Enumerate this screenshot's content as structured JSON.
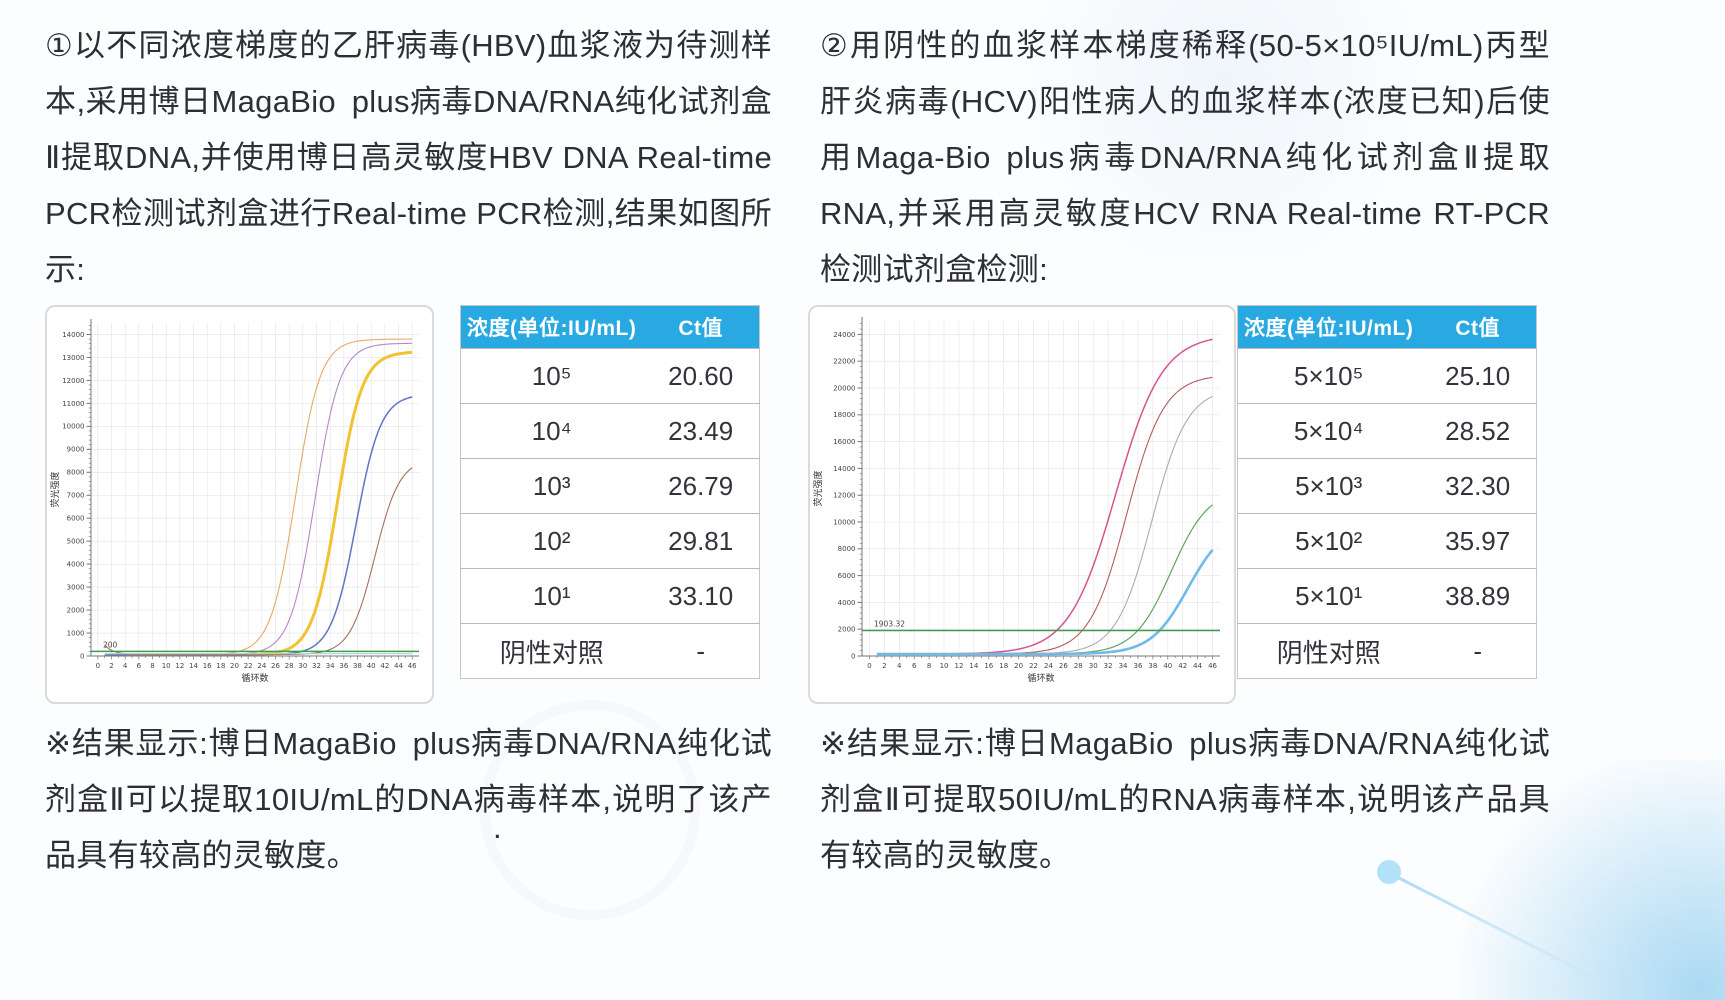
{
  "colors": {
    "table_header_bg": "#29A9E1",
    "table_header_text": "#FFFFFF",
    "threshold_green": "#3E9B4F",
    "decor_blue": "#ADE0F7"
  },
  "left_panel": {
    "description": "①以不同浓度梯度的乙肝病毒(HBV)血浆液为待测样本,采用博日MagaBio plus病毒DNA/RNA纯化试剂盒Ⅱ提取DNA,并使用博日高灵敏度HBV DNA Real-time PCR检测试剂盒进行Real-time PCR检测,结果如图所示:",
    "result": "※结果显示:博日MagaBio plus病毒DNA/RNA纯化试剂盒Ⅱ可以提取10IU/mL的DNA病毒样本,说明了该产品具有较高的灵敏度。",
    "stray_dot": ".",
    "table": {
      "headers": [
        "浓度(单位:IU/mL)",
        "Ct值"
      ],
      "rows": [
        [
          "10⁵",
          "20.60"
        ],
        [
          "10⁴",
          "23.49"
        ],
        [
          "10³",
          "26.79"
        ],
        [
          "10²",
          "29.81"
        ],
        [
          "10¹",
          "33.10"
        ],
        [
          "阴性对照",
          "-"
        ]
      ]
    }
  },
  "right_panel": {
    "description": "②用阴性的血浆样本梯度稀释(50-5×10⁵IU/mL)丙型肝炎病毒(HCV)阳性病人的血浆样本(浓度已知)后使用Maga-Bio plus病毒DNA/RNA纯化试剂盒Ⅱ提取RNA,并采用高灵敏度HCV RNA Real-time RT-PCR检测试剂盒检测:",
    "result": "※结果显示:博日MagaBio plus病毒DNA/RNA纯化试剂盒Ⅱ可提取50IU/mL的RNA病毒样本,说明该产品具有较高的灵敏度。",
    "table": {
      "headers": [
        "浓度(单位:IU/mL)",
        "Ct值"
      ],
      "rows": [
        [
          "5×10⁵",
          "25.10"
        ],
        [
          "5×10⁴",
          "28.52"
        ],
        [
          "5×10³",
          "32.30"
        ],
        [
          "5×10²",
          "35.97"
        ],
        [
          "5×10¹",
          "38.89"
        ],
        [
          "阴性对照",
          "-"
        ]
      ]
    }
  },
  "chart_data": [
    {
      "type": "line",
      "title": "",
      "xlabel": "循环数",
      "ylabel": "荧光强度",
      "xlim": [
        0,
        46
      ],
      "ylim": [
        0,
        14500
      ],
      "xtick_step": 2,
      "ytick_step": 1000,
      "grid": true,
      "legend": false,
      "baseline": 60,
      "k": 0.55,
      "threshold": {
        "value": 200,
        "label": "200",
        "color": "#3E9B4F"
      },
      "series": [
        {
          "name": "10⁵",
          "ct": 20.6,
          "plateau": 13800,
          "color": "#E9A865",
          "width": 1.1,
          "start_amp": -40
        },
        {
          "name": "10⁴",
          "ct": 23.49,
          "plateau": 13620,
          "color": "#B687C7",
          "width": 1.1,
          "start_amp": -30
        },
        {
          "name": "10³",
          "ct": 26.79,
          "plateau": 13250,
          "color": "#F1C232",
          "width": 3.0,
          "start_amp": -40
        },
        {
          "name": "10²",
          "ct": 29.81,
          "plateau": 11400,
          "color": "#6274C4",
          "width": 1.5,
          "start_amp": -30
        },
        {
          "name": "10¹",
          "ct": 33.1,
          "plateau": 8600,
          "color": "#A4705B",
          "width": 1.1,
          "start_amp": 420
        },
        {
          "name": "阴性对照",
          "flat": 100,
          "color": "#A5D8CC",
          "width": 1.1
        }
      ]
    },
    {
      "type": "line",
      "title": "",
      "xlabel": "循环数",
      "ylabel": "荧光强度",
      "xlim": [
        0,
        46
      ],
      "ylim": [
        0,
        25000
      ],
      "xtick_step": 2,
      "ytick_step": 2000,
      "grid": true,
      "legend": false,
      "baseline": 150,
      "k": 0.4,
      "threshold": {
        "value": 1903.32,
        "label": "1903.32",
        "color": "#3E9B4F"
      },
      "series": [
        {
          "name": "5×10⁵",
          "ct": 25.1,
          "plateau": 24000,
          "color": "#D5548F",
          "width": 1.5,
          "k": 0.32
        },
        {
          "name": "5×10⁴",
          "ct": 28.52,
          "plateau": 21000,
          "color": "#B25C5C",
          "width": 1.1,
          "k": 0.4
        },
        {
          "name": "5×10³",
          "ct": 32.3,
          "plateau": 20000,
          "color": "#ACACAC",
          "width": 1.1,
          "k": 0.42
        },
        {
          "name": "5×10²",
          "ct": 35.97,
          "plateau": 12500,
          "color": "#5FA45F",
          "width": 1.2,
          "k": 0.4
        },
        {
          "name": "5×10¹",
          "ct": 38.89,
          "plateau": 10000,
          "color": "#6FBAE9",
          "width": 2.6,
          "k": 0.4
        }
      ]
    }
  ]
}
